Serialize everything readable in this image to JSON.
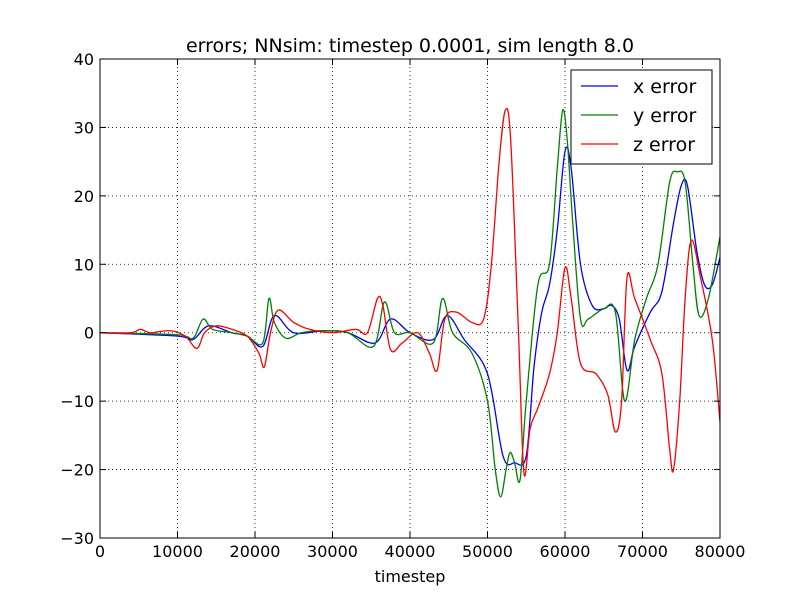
{
  "chart_data": {
    "type": "line",
    "title": "errors; NNsim: timestep 0.0001, sim length 8.0",
    "xlabel": "timestep",
    "ylabel": "",
    "xlim": [
      0,
      80000
    ],
    "ylim": [
      -30,
      40
    ],
    "xticks": [
      0,
      10000,
      20000,
      30000,
      40000,
      50000,
      60000,
      70000,
      80000
    ],
    "yticks": [
      -30,
      -20,
      -10,
      0,
      10,
      20,
      30,
      40
    ],
    "xtick_labels": [
      "0",
      "10000",
      "20000",
      "30000",
      "40000",
      "50000",
      "60000",
      "70000",
      "80000"
    ],
    "ytick_labels": [
      "−30",
      "−20",
      "−10",
      "0",
      "10",
      "20",
      "30",
      "40"
    ],
    "grid": true,
    "legend_position": "top-right",
    "series": [
      {
        "name": "x error",
        "color": "#0000ff",
        "points": [
          [
            0,
            0
          ],
          [
            10000,
            -0.5
          ],
          [
            12000,
            -1
          ],
          [
            14000,
            1
          ],
          [
            17000,
            0
          ],
          [
            19000,
            -0.5
          ],
          [
            21000,
            -2
          ],
          [
            22500,
            2.5
          ],
          [
            25000,
            0
          ],
          [
            29000,
            0.3
          ],
          [
            32000,
            0
          ],
          [
            35500,
            -1.5
          ],
          [
            37500,
            2
          ],
          [
            40000,
            0
          ],
          [
            43000,
            -1
          ],
          [
            44800,
            2.5
          ],
          [
            47000,
            -1
          ],
          [
            50000,
            -6
          ],
          [
            52000,
            -18
          ],
          [
            53500,
            -19
          ],
          [
            55000,
            -18
          ],
          [
            56000,
            -5
          ],
          [
            57000,
            3
          ],
          [
            58000,
            7
          ],
          [
            59000,
            15
          ],
          [
            60000,
            26.5
          ],
          [
            60800,
            24
          ],
          [
            62000,
            10
          ],
          [
            63500,
            4
          ],
          [
            65000,
            3.5
          ],
          [
            66000,
            4
          ],
          [
            67000,
            2
          ],
          [
            68000,
            -5.5
          ],
          [
            69000,
            -2
          ],
          [
            71000,
            3
          ],
          [
            72500,
            6
          ],
          [
            74000,
            16
          ],
          [
            75000,
            21.5
          ],
          [
            75800,
            21.5
          ],
          [
            77000,
            12
          ],
          [
            78000,
            7
          ],
          [
            79000,
            7
          ],
          [
            80000,
            11
          ]
        ]
      },
      {
        "name": "y error",
        "color": "#008000",
        "points": [
          [
            0,
            0
          ],
          [
            10000,
            -0.3
          ],
          [
            12000,
            -0.8
          ],
          [
            13300,
            2
          ],
          [
            14500,
            0.5
          ],
          [
            17000,
            0
          ],
          [
            19000,
            -0.5
          ],
          [
            21000,
            -1.5
          ],
          [
            21800,
            5
          ],
          [
            22500,
            1.5
          ],
          [
            24000,
            -0.8
          ],
          [
            26000,
            0
          ],
          [
            29000,
            0.3
          ],
          [
            32000,
            0
          ],
          [
            35300,
            -2
          ],
          [
            36700,
            4.5
          ],
          [
            38000,
            0
          ],
          [
            40000,
            0
          ],
          [
            43000,
            -1.5
          ],
          [
            44200,
            5
          ],
          [
            45500,
            0
          ],
          [
            48000,
            -3
          ],
          [
            50000,
            -10
          ],
          [
            51000,
            -20
          ],
          [
            51700,
            -24
          ],
          [
            52400,
            -20
          ],
          [
            52900,
            -17.5
          ],
          [
            53500,
            -19
          ],
          [
            54200,
            -21.5
          ],
          [
            55000,
            -10
          ],
          [
            56500,
            7
          ],
          [
            58000,
            10
          ],
          [
            59000,
            24
          ],
          [
            59700,
            32.5
          ],
          [
            60300,
            28
          ],
          [
            61000,
            16
          ],
          [
            62000,
            2
          ],
          [
            63000,
            2
          ],
          [
            65000,
            3.5
          ],
          [
            66500,
            3
          ],
          [
            67700,
            -10
          ],
          [
            69000,
            -1
          ],
          [
            70500,
            5
          ],
          [
            72000,
            10
          ],
          [
            73500,
            22
          ],
          [
            74500,
            23.5
          ],
          [
            75500,
            22
          ],
          [
            76500,
            10
          ],
          [
            77300,
            2.5
          ],
          [
            78500,
            5
          ],
          [
            80000,
            14
          ]
        ]
      },
      {
        "name": "z error",
        "color": "#ff0000",
        "points": [
          [
            0,
            0
          ],
          [
            4000,
            0
          ],
          [
            5200,
            0.5
          ],
          [
            6500,
            0
          ],
          [
            9000,
            0.3
          ],
          [
            11000,
            -0.5
          ],
          [
            12500,
            -2.3
          ],
          [
            13500,
            0
          ],
          [
            15000,
            1
          ],
          [
            17000,
            0.5
          ],
          [
            19000,
            -0.5
          ],
          [
            20500,
            -3
          ],
          [
            21200,
            -5
          ],
          [
            22000,
            0
          ],
          [
            23000,
            3.3
          ],
          [
            25000,
            1.5
          ],
          [
            27000,
            0.5
          ],
          [
            30000,
            0
          ],
          [
            33000,
            0.5
          ],
          [
            34500,
            0
          ],
          [
            35800,
            5
          ],
          [
            36500,
            4
          ],
          [
            37500,
            -2.5
          ],
          [
            39000,
            -1.5
          ],
          [
            41000,
            0
          ],
          [
            42500,
            -3
          ],
          [
            43500,
            -5.5
          ],
          [
            44500,
            2
          ],
          [
            46000,
            3
          ],
          [
            48000,
            1.5
          ],
          [
            49500,
            2
          ],
          [
            50500,
            10
          ],
          [
            51500,
            25
          ],
          [
            52300,
            32.5
          ],
          [
            53000,
            28
          ],
          [
            54000,
            0
          ],
          [
            54700,
            -20.5
          ],
          [
            55500,
            -14
          ],
          [
            56500,
            -11
          ],
          [
            58000,
            -6
          ],
          [
            59000,
            0
          ],
          [
            60000,
            9.5
          ],
          [
            60800,
            5
          ],
          [
            62000,
            -4.5
          ],
          [
            64000,
            -6
          ],
          [
            65500,
            -9
          ],
          [
            66500,
            -14.5
          ],
          [
            67300,
            -10
          ],
          [
            68000,
            8
          ],
          [
            69000,
            5
          ],
          [
            71000,
            -1
          ],
          [
            72500,
            -6
          ],
          [
            73500,
            -17
          ],
          [
            74000,
            -20
          ],
          [
            74800,
            -10
          ],
          [
            75500,
            5
          ],
          [
            76300,
            13.5
          ],
          [
            77500,
            8
          ],
          [
            79000,
            -1
          ],
          [
            80000,
            -13
          ]
        ]
      }
    ]
  }
}
